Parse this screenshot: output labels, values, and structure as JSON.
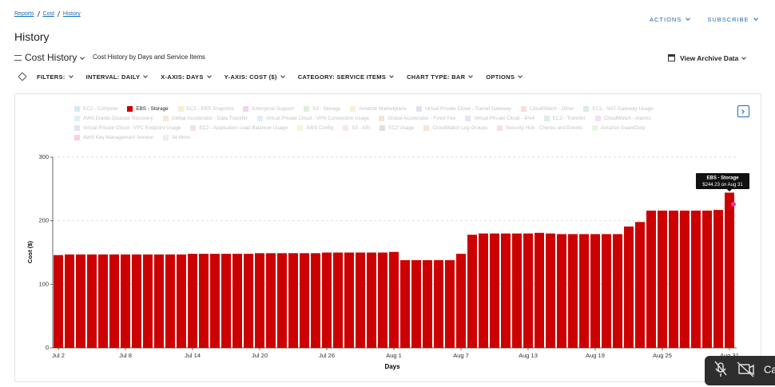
{
  "breadcrumbs": [
    "Reports",
    "Cost",
    "History"
  ],
  "header_actions": [
    "ACTIONS",
    "SUBSCRIBE"
  ],
  "page_title": "History",
  "report": {
    "name": "Cost History",
    "description": "Cost History by Days and Service Items"
  },
  "archive_link": "View Archive Data",
  "toolbar": [
    "FILTERS:",
    "INTERVAL: DAILY",
    "X-AXIS: DAYS",
    "Y-AXIS: COST ($)",
    "CATEGORY: SERVICE ITEMS",
    "CHART TYPE: BAR",
    "OPTIONS"
  ],
  "call_overlay": "Ca",
  "chart_data": {
    "type": "bar",
    "legend": [
      {
        "name": "EC2 - Compute",
        "color": "#7fc4d9",
        "active": false
      },
      {
        "name": "EBS - Storage",
        "color": "#cc0000",
        "active": true
      },
      {
        "name": "EC2 - EBS Snapshot",
        "color": "#f5c27a",
        "active": false
      },
      {
        "name": "Enterprise Support",
        "color": "#d77ee0",
        "active": false
      },
      {
        "name": "S3 - Storage",
        "color": "#9fd88a",
        "active": false
      },
      {
        "name": "Amazon Marketplace",
        "color": "#f2d48a",
        "active": false
      },
      {
        "name": "Virtual Private Cloud - Transit Gateway",
        "color": "#a9a3e8",
        "active": false
      },
      {
        "name": "CloudWatch - Other",
        "color": "#f3a58a",
        "active": false
      },
      {
        "name": "EC2 - NAT Gateway Usage",
        "color": "#8ac7c7",
        "active": false
      },
      {
        "name": "AWS Elastic Disaster Recovery",
        "color": "#9ad7dc",
        "active": false
      },
      {
        "name": "Global Accelerator - Data Transfer",
        "color": "#e8c07a",
        "active": false
      },
      {
        "name": "Virtual Private Cloud - VPN Connection Usage",
        "color": "#a8c8ee",
        "active": false
      },
      {
        "name": "Global Accelerator - Fixed Fee",
        "color": "#f0a890",
        "active": false
      },
      {
        "name": "Virtual Private Cloud - IPv4",
        "color": "#c9a7e8",
        "active": false
      },
      {
        "name": "EC2 - Transfer",
        "color": "#8fd0b0",
        "active": false
      },
      {
        "name": "CloudWatch - Alarms",
        "color": "#e2a3e6",
        "active": false
      },
      {
        "name": "Virtual Private Cloud - VPC Endpoint Usage",
        "color": "#b4a6e4",
        "active": false
      },
      {
        "name": "EC2 - Application Load Balancer Usage",
        "color": "#e49bd8",
        "active": false
      },
      {
        "name": "AWS Config",
        "color": "#e6e08a",
        "active": false
      },
      {
        "name": "S3 - API",
        "color": "#f4b3c4",
        "active": false
      },
      {
        "name": "EC2 Usage",
        "color": "#a0a0a0",
        "active": false
      },
      {
        "name": "CloudWatch Log Groups",
        "color": "#e8b88a",
        "active": false
      },
      {
        "name": "Security Hub - Checks and Events",
        "color": "#f29ac4",
        "active": false
      },
      {
        "name": "Amazon GuardDuty",
        "color": "#b8e4a8",
        "active": false
      },
      {
        "name": "AWS Key Management Service",
        "color": "#e678b0",
        "active": false
      },
      {
        "name": "34 More",
        "color": "#cccccc",
        "active": false
      }
    ],
    "color": "#cc0000",
    "categories": [
      "Jul 2",
      null,
      null,
      null,
      null,
      null,
      "Jul 8",
      null,
      null,
      null,
      null,
      null,
      "Jul 14",
      null,
      null,
      null,
      null,
      null,
      "Jul 20",
      null,
      null,
      null,
      null,
      null,
      "Jul 26",
      null,
      null,
      null,
      null,
      null,
      "Aug 1",
      null,
      null,
      null,
      null,
      null,
      "Aug 7",
      null,
      null,
      null,
      null,
      null,
      "Aug 13",
      null,
      null,
      null,
      null,
      null,
      "Aug 19",
      null,
      null,
      null,
      null,
      null,
      "Aug 25",
      null,
      null,
      null,
      null,
      null,
      "Aug 31"
    ],
    "values": [
      146,
      147,
      147,
      147,
      147,
      147,
      147,
      147,
      147,
      147,
      147,
      147,
      148,
      148,
      148,
      148,
      148,
      148,
      149,
      149,
      149,
      149,
      149,
      149,
      150,
      150,
      150,
      150,
      150,
      150,
      151,
      138,
      138,
      138,
      138,
      138,
      148,
      178,
      180,
      180,
      180,
      180,
      180,
      181,
      180,
      179,
      179,
      179,
      179,
      179,
      179,
      191,
      198,
      216,
      216,
      216,
      216,
      216,
      216,
      217,
      244.23
    ],
    "ylim": [
      0,
      300
    ],
    "yticks": [
      0,
      100,
      200,
      300
    ],
    "grid": true,
    "x_label": "Days",
    "y_label": "Cost ($)",
    "tooltip": {
      "title": "EBS - Storage",
      "text": "$244.23 on Aug 31"
    }
  }
}
